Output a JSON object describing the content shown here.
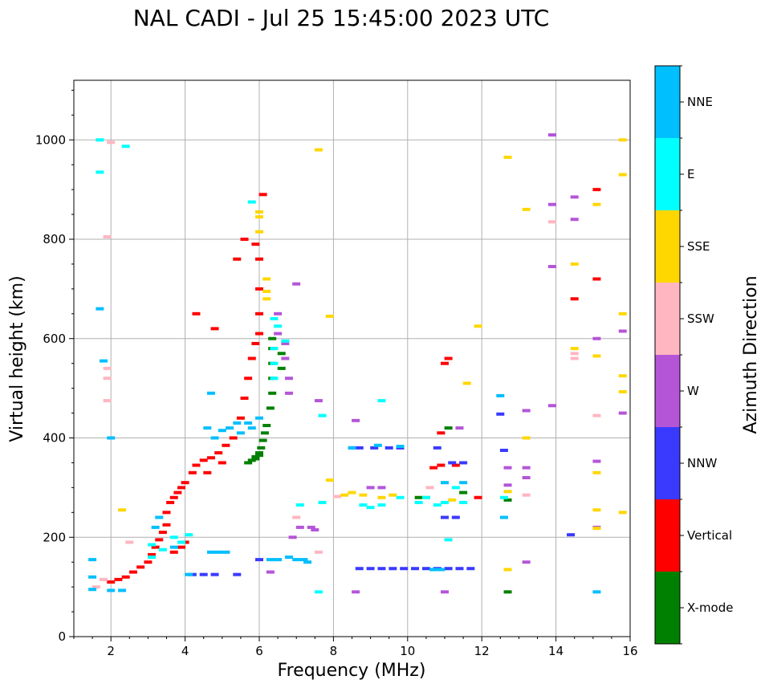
{
  "chart_data": {
    "type": "scatter",
    "title": "NAL CADI - Jul 25 15:45:00 2023 UTC",
    "xlabel": "Frequency (MHz)",
    "ylabel": "Virtual height (km)",
    "xlim": [
      1,
      16
    ],
    "ylim": [
      0,
      1120
    ],
    "xticks": [
      2,
      4,
      6,
      8,
      10,
      12,
      14,
      16
    ],
    "yticks": [
      0,
      200,
      400,
      600,
      800,
      1000
    ],
    "grid": true,
    "colorbar": {
      "label": "Azimuth Direction",
      "categories": [
        "X-mode",
        "Vertical",
        "NNW",
        "W",
        "SSW",
        "SSE",
        "E",
        "NNE"
      ],
      "colors": [
        "#008000",
        "#ff0000",
        "#3a3aff",
        "#b455d8",
        "#ffb6c1",
        "#ffd700",
        "#00ffff",
        "#00bfff"
      ]
    },
    "series": [
      {
        "name": "X-mode",
        "points": [
          [
            5.7,
            350
          ],
          [
            5.8,
            355
          ],
          [
            5.9,
            362
          ],
          [
            6.0,
            370
          ],
          [
            6.05,
            380
          ],
          [
            6.1,
            395
          ],
          [
            6.15,
            410
          ],
          [
            6.2,
            425
          ],
          [
            6.3,
            460
          ],
          [
            6.35,
            490
          ],
          [
            6.35,
            520
          ],
          [
            6.35,
            550
          ],
          [
            6.35,
            580
          ],
          [
            6.35,
            600
          ],
          [
            6.6,
            570
          ],
          [
            6.6,
            540
          ],
          [
            6.0,
            365
          ],
          [
            5.9,
            358
          ],
          [
            10.3,
            280
          ],
          [
            11.1,
            420
          ],
          [
            11.5,
            290
          ],
          [
            12.7,
            90
          ],
          [
            12.7,
            275
          ]
        ]
      },
      {
        "name": "Vertical",
        "points": [
          [
            2.0,
            110
          ],
          [
            2.2,
            115
          ],
          [
            2.4,
            120
          ],
          [
            2.6,
            130
          ],
          [
            2.8,
            140
          ],
          [
            3.0,
            150
          ],
          [
            3.1,
            165
          ],
          [
            3.2,
            180
          ],
          [
            3.3,
            195
          ],
          [
            3.4,
            210
          ],
          [
            3.5,
            225
          ],
          [
            3.5,
            250
          ],
          [
            3.6,
            270
          ],
          [
            3.7,
            280
          ],
          [
            3.8,
            290
          ],
          [
            3.9,
            300
          ],
          [
            4.0,
            310
          ],
          [
            4.2,
            330
          ],
          [
            4.3,
            345
          ],
          [
            4.5,
            355
          ],
          [
            4.7,
            360
          ],
          [
            4.9,
            370
          ],
          [
            5.1,
            385
          ],
          [
            5.3,
            400
          ],
          [
            5.5,
            440
          ],
          [
            5.6,
            480
          ],
          [
            5.7,
            520
          ],
          [
            5.8,
            560
          ],
          [
            5.9,
            590
          ],
          [
            6.0,
            610
          ],
          [
            6.0,
            650
          ],
          [
            6.0,
            700
          ],
          [
            6.0,
            760
          ],
          [
            5.9,
            790
          ],
          [
            5.6,
            800
          ],
          [
            4.3,
            650
          ],
          [
            4.8,
            620
          ],
          [
            3.7,
            170
          ],
          [
            3.9,
            180
          ],
          [
            4.0,
            190
          ],
          [
            5.0,
            350
          ],
          [
            4.6,
            330
          ],
          [
            6.1,
            890
          ],
          [
            5.4,
            760
          ],
          [
            10.9,
            410
          ],
          [
            10.7,
            340
          ],
          [
            11.1,
            560
          ],
          [
            11.9,
            280
          ],
          [
            14.5,
            680
          ],
          [
            15.1,
            720
          ],
          [
            15.1,
            900
          ],
          [
            11.0,
            550
          ],
          [
            10.9,
            345
          ],
          [
            11.3,
            345
          ]
        ]
      },
      {
        "name": "NNW",
        "points": [
          [
            4.2,
            125
          ],
          [
            4.5,
            125
          ],
          [
            4.8,
            125
          ],
          [
            5.4,
            125
          ],
          [
            6.0,
            155
          ],
          [
            8.5,
            380
          ],
          [
            8.7,
            380
          ],
          [
            9.1,
            380
          ],
          [
            9.5,
            380
          ],
          [
            9.8,
            380
          ],
          [
            8.7,
            137
          ],
          [
            9.0,
            137
          ],
          [
            9.3,
            137
          ],
          [
            9.6,
            137
          ],
          [
            9.9,
            137
          ],
          [
            10.2,
            137
          ],
          [
            10.5,
            137
          ],
          [
            10.8,
            137
          ],
          [
            11.1,
            137
          ],
          [
            11.4,
            137
          ],
          [
            11.7,
            137
          ],
          [
            10.8,
            380
          ],
          [
            11.0,
            240
          ],
          [
            11.3,
            240
          ],
          [
            12.5,
            448
          ],
          [
            12.6,
            375
          ],
          [
            14.4,
            205
          ],
          [
            11.2,
            350
          ],
          [
            11.5,
            350
          ]
        ]
      },
      {
        "name": "W",
        "points": [
          [
            6.5,
            650
          ],
          [
            6.5,
            610
          ],
          [
            6.7,
            590
          ],
          [
            6.7,
            560
          ],
          [
            6.8,
            520
          ],
          [
            6.8,
            490
          ],
          [
            7.0,
            710
          ],
          [
            6.9,
            200
          ],
          [
            7.1,
            220
          ],
          [
            7.4,
            220
          ],
          [
            7.5,
            215
          ],
          [
            8.6,
            435
          ],
          [
            8.6,
            90
          ],
          [
            9.0,
            300
          ],
          [
            9.3,
            300
          ],
          [
            11.0,
            90
          ],
          [
            11.4,
            420
          ],
          [
            12.7,
            340
          ],
          [
            12.7,
            305
          ],
          [
            13.2,
            455
          ],
          [
            13.2,
            340
          ],
          [
            13.2,
            320
          ],
          [
            13.2,
            150
          ],
          [
            13.9,
            1010
          ],
          [
            13.9,
            870
          ],
          [
            13.9,
            745
          ],
          [
            13.9,
            465
          ],
          [
            14.5,
            885
          ],
          [
            14.5,
            840
          ],
          [
            15.1,
            600
          ],
          [
            15.1,
            353
          ],
          [
            15.1,
            220
          ],
          [
            15.8,
            615
          ],
          [
            15.8,
            450
          ],
          [
            6.3,
            130
          ],
          [
            7.6,
            475
          ]
        ]
      },
      {
        "name": "SSW",
        "points": [
          [
            1.9,
            520
          ],
          [
            1.9,
            540
          ],
          [
            1.9,
            475
          ],
          [
            1.9,
            805
          ],
          [
            2.0,
            995
          ],
          [
            1.6,
            100
          ],
          [
            1.8,
            115
          ],
          [
            2.5,
            190
          ],
          [
            7.0,
            240
          ],
          [
            7.6,
            170
          ],
          [
            10.6,
            300
          ],
          [
            13.2,
            285
          ],
          [
            13.9,
            835
          ],
          [
            14.5,
            570
          ],
          [
            14.5,
            560
          ],
          [
            15.1,
            445
          ],
          [
            8.1,
            282
          ]
        ]
      },
      {
        "name": "SSE",
        "points": [
          [
            6.0,
            815
          ],
          [
            6.0,
            845
          ],
          [
            6.0,
            855
          ],
          [
            6.2,
            680
          ],
          [
            6.2,
            695
          ],
          [
            6.2,
            720
          ],
          [
            7.6,
            980
          ],
          [
            7.9,
            645
          ],
          [
            7.9,
            315
          ],
          [
            8.3,
            285
          ],
          [
            8.5,
            290
          ],
          [
            8.8,
            285
          ],
          [
            9.3,
            280
          ],
          [
            9.6,
            285
          ],
          [
            11.6,
            510
          ],
          [
            11.9,
            625
          ],
          [
            12.7,
            965
          ],
          [
            12.7,
            292
          ],
          [
            12.7,
            135
          ],
          [
            13.2,
            400
          ],
          [
            13.2,
            860
          ],
          [
            14.5,
            750
          ],
          [
            14.5,
            580
          ],
          [
            15.1,
            870
          ],
          [
            15.1,
            565
          ],
          [
            15.1,
            330
          ],
          [
            15.1,
            255
          ],
          [
            15.1,
            218
          ],
          [
            15.8,
            1000
          ],
          [
            15.8,
            930
          ],
          [
            15.8,
            650
          ],
          [
            15.8,
            525
          ],
          [
            15.8,
            493
          ],
          [
            15.8,
            250
          ],
          [
            2.3,
            255
          ],
          [
            10.5,
            280
          ],
          [
            11.2,
            275
          ]
        ]
      },
      {
        "name": "E",
        "points": [
          [
            1.7,
            1000
          ],
          [
            1.7,
            935
          ],
          [
            2.4,
            987
          ],
          [
            3.1,
            185
          ],
          [
            3.1,
            160
          ],
          [
            3.4,
            175
          ],
          [
            3.7,
            200
          ],
          [
            3.9,
            190
          ],
          [
            4.1,
            205
          ],
          [
            5.8,
            875
          ],
          [
            6.4,
            640
          ],
          [
            6.5,
            625
          ],
          [
            6.4,
            580
          ],
          [
            6.4,
            550
          ],
          [
            6.4,
            520
          ],
          [
            6.7,
            595
          ],
          [
            7.1,
            265
          ],
          [
            7.7,
            270
          ],
          [
            7.7,
            445
          ],
          [
            8.8,
            265
          ],
          [
            9.0,
            260
          ],
          [
            9.3,
            265
          ],
          [
            9.8,
            280
          ],
          [
            10.3,
            270
          ],
          [
            10.5,
            280
          ],
          [
            10.8,
            265
          ],
          [
            11.0,
            270
          ],
          [
            11.3,
            300
          ],
          [
            11.5,
            270
          ],
          [
            11.1,
            195
          ],
          [
            9.3,
            475
          ],
          [
            12.6,
            280
          ],
          [
            12.6,
            240
          ],
          [
            7.6,
            90
          ]
        ]
      },
      {
        "name": "NNE",
        "points": [
          [
            1.5,
            95
          ],
          [
            1.5,
            120
          ],
          [
            1.5,
            155
          ],
          [
            1.7,
            660
          ],
          [
            1.8,
            555
          ],
          [
            2.0,
            400
          ],
          [
            2.0,
            93
          ],
          [
            2.3,
            93
          ],
          [
            3.2,
            220
          ],
          [
            3.3,
            240
          ],
          [
            3.7,
            180
          ],
          [
            4.6,
            420
          ],
          [
            4.7,
            490
          ],
          [
            4.8,
            400
          ],
          [
            5.0,
            415
          ],
          [
            5.2,
            420
          ],
          [
            5.4,
            430
          ],
          [
            5.5,
            410
          ],
          [
            5.7,
            430
          ],
          [
            5.8,
            420
          ],
          [
            6.0,
            440
          ],
          [
            4.7,
            170
          ],
          [
            4.9,
            170
          ],
          [
            5.1,
            170
          ],
          [
            6.3,
            155
          ],
          [
            6.5,
            155
          ],
          [
            6.8,
            160
          ],
          [
            7.0,
            155
          ],
          [
            7.2,
            155
          ],
          [
            7.3,
            150
          ],
          [
            4.1,
            125
          ],
          [
            8.5,
            380
          ],
          [
            9.2,
            385
          ],
          [
            9.8,
            383
          ],
          [
            10.7,
            135
          ],
          [
            10.9,
            135
          ],
          [
            12.5,
            485
          ],
          [
            12.6,
            240
          ],
          [
            15.1,
            90
          ],
          [
            11.0,
            310
          ],
          [
            11.5,
            310
          ]
        ]
      }
    ]
  }
}
